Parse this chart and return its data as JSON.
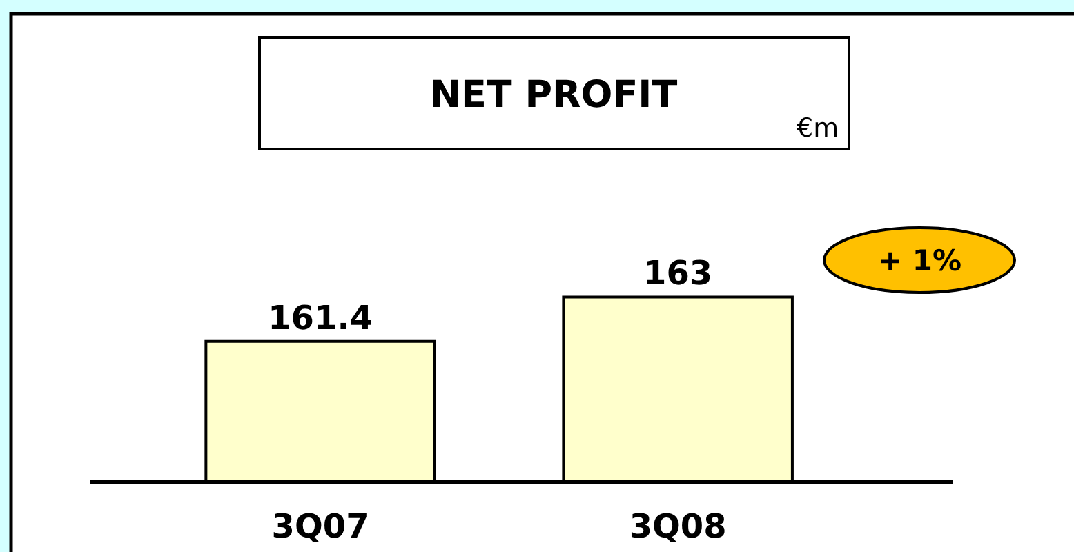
{
  "chart_data": {
    "type": "bar",
    "title": "NET PROFIT",
    "categories": [
      "3Q07",
      "3Q08"
    ],
    "values": [
      161.4,
      163
    ],
    "color": "#ffffcc",
    "ylim": [
      156.4,
      173.2
    ],
    "data_labels": true,
    "tick_labels": "x",
    "annotations": [
      "€m",
      "+ 1%"
    ]
  }
}
